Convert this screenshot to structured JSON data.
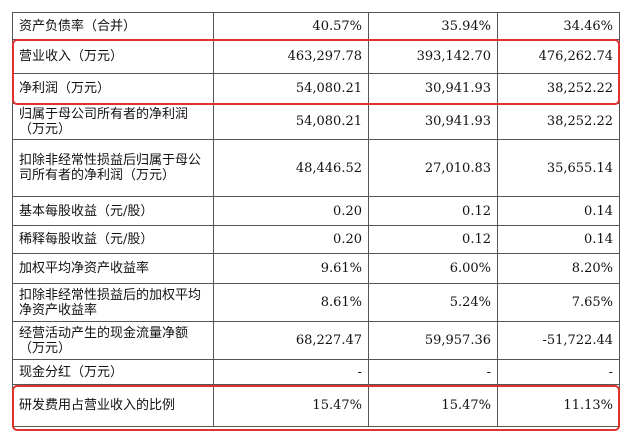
{
  "table": {
    "rows": [
      {
        "label": "资产负债率（合并）",
        "values": [
          "40.57%",
          "35.94%",
          "34.46%"
        ]
      },
      {
        "label": "营业收入（万元）",
        "values": [
          "463,297.78",
          "393,142.70",
          "476,262.74"
        ]
      },
      {
        "label": "净利润（万元）",
        "values": [
          "54,080.21",
          "30,941.93",
          "38,252.22"
        ]
      },
      {
        "label": "归属于母公司所有者的净利润（万元）",
        "values": [
          "54,080.21",
          "30,941.93",
          "38,252.22"
        ]
      },
      {
        "label": "扣除非经常性损益后归属于母公司所有者的净利润（万元）",
        "values": [
          "48,446.52",
          "27,010.83",
          "35,655.14"
        ]
      },
      {
        "label": "基本每股收益（元/股）",
        "values": [
          "0.20",
          "0.12",
          "0.14"
        ]
      },
      {
        "label": "稀释每股收益（元/股）",
        "values": [
          "0.20",
          "0.12",
          "0.14"
        ]
      },
      {
        "label": "加权平均净资产收益率",
        "values": [
          "9.61%",
          "6.00%",
          "8.20%"
        ]
      },
      {
        "label": "扣除非经常性损益后的加权平均净资产收益率",
        "values": [
          "8.61%",
          "5.24%",
          "7.65%"
        ]
      },
      {
        "label": "经营活动产生的现金流量净额（万元）",
        "values": [
          "68,227.47",
          "59,957.36",
          "-51,722.44"
        ]
      },
      {
        "label": "现金分红（万元）",
        "values": [
          "-",
          "-",
          "-"
        ]
      },
      {
        "label": "研发费用占营业收入的比例",
        "values": [
          "15.47%",
          "15.47%",
          "11.13%"
        ]
      }
    ]
  },
  "highlight_color": "#e0322e"
}
